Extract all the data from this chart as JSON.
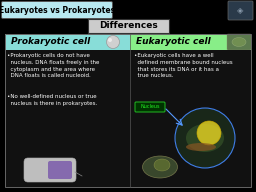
{
  "background_color": "#000000",
  "title_box_text": "Eukaryotes vs Prokaryotes",
  "title_box_bg": "#b8e8f0",
  "title_box_border": "#555555",
  "differences_text": "Differences",
  "differences_bg": "#cccccc",
  "differences_border": "#333333",
  "left_header_text": "Prokaryotic cell",
  "left_header_bg": "#88ddd8",
  "right_header_text": "Eukaryotic cell",
  "right_header_bg": "#88ee88",
  "content_bg": "#111111",
  "left_bullet1": "•Prokaryotic cells do not have\n  nucleus. DNA floats freely in the\n  cytoplasm and the area where\n  DNA floats is called nucleoid.",
  "left_bullet2": "•No well-defined nucleus or true\n  nucleus is there in prokaryotes.",
  "right_bullet1": "•Eukaryotic cells have a well\n  defined membrane bound nucleus\n  that stores its DNA or it has a\n  true nucleus.",
  "right_label": "Nucleus",
  "text_color": "#ffffff",
  "font_size_title": 5.5,
  "font_size_header": 6.5,
  "font_size_bullet": 4.0,
  "font_size_diff": 6.5,
  "font_size_nucleus": 3.5
}
